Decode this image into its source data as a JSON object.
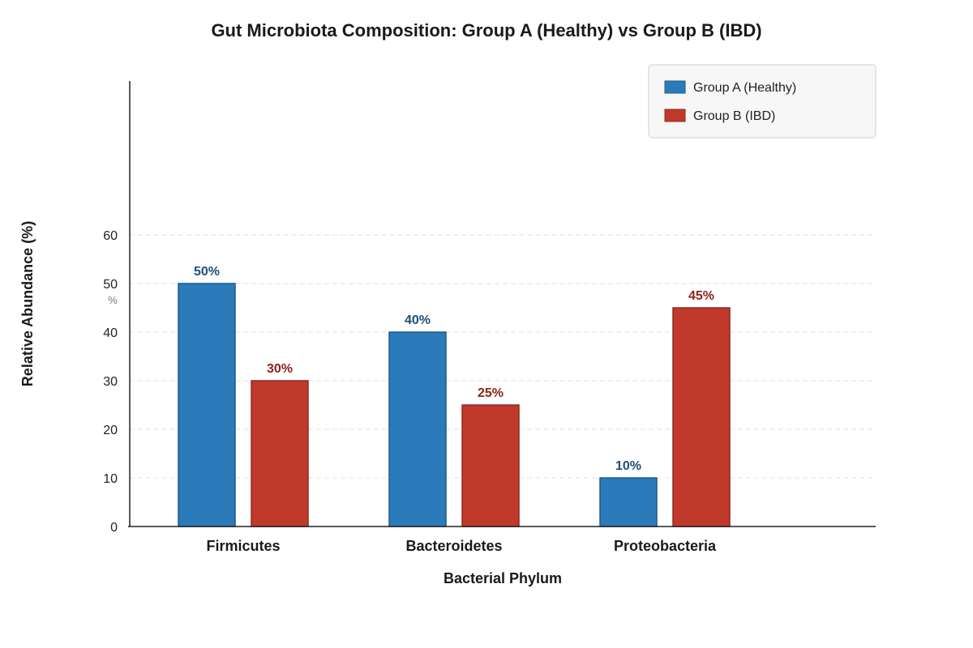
{
  "chart_data": {
    "type": "bar",
    "title": "Gut Microbiota Composition: Group A (Healthy) vs Group B (IBD)",
    "xlabel": "Bacterial Phylum",
    "ylabel": "Relative Abundance (%)",
    "y_unit_label": "%",
    "categories": [
      "Firmicutes",
      "Bacteroidetes",
      "Proteobacteria"
    ],
    "series": [
      {
        "name": "Group A (Healthy)",
        "values": [
          50,
          40,
          10
        ],
        "labels": [
          "50%",
          "40%",
          "10%"
        ],
        "color": "#2b7bba",
        "stroke": "#1f5a8a",
        "label_color": "#1f4e79"
      },
      {
        "name": "Group B (IBD)",
        "values": [
          30,
          25,
          45
        ],
        "labels": [
          "30%",
          "25%",
          "45%"
        ],
        "color": "#c0392b",
        "stroke": "#8e2a20",
        "label_color": "#8b2418"
      }
    ],
    "y_ticks": [
      0,
      10,
      20,
      30,
      40,
      50,
      60
    ],
    "y_tick_labels": [
      "0",
      "10",
      "20",
      "30",
      "40",
      "50",
      "60"
    ],
    "ylim": [
      0,
      60
    ],
    "grid": true,
    "legend_position": "top-right"
  }
}
